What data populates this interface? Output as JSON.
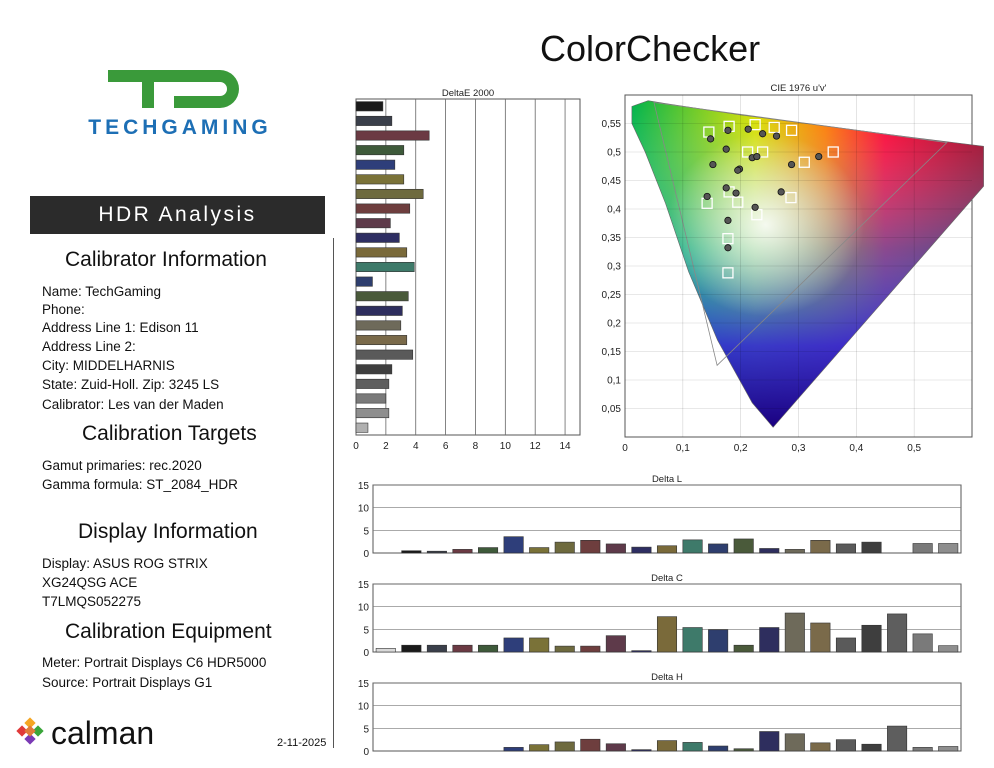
{
  "page_title": "ColorChecker",
  "brand_text": "TECHGAMING",
  "banner": "HDR Analysis",
  "calibrator": {
    "title": "Calibrator Information",
    "lines": [
      "Name: TechGaming",
      "Phone:",
      "Address Line 1: Edison 11",
      "Address Line 2:",
      "City: MIDDELHARNIS",
      "State: Zuid-Holl.   Zip: 3245 LS",
      "Calibrator: Les van der Maden"
    ]
  },
  "targets": {
    "title": "Calibration Targets",
    "lines": [
      "Gamut primaries: rec.2020",
      "Gamma formula: ST_2084_HDR"
    ]
  },
  "display": {
    "title": "Display Information",
    "lines": [
      "Display: ASUS ROG STRIX",
      "XG24QSG ACE",
      "T7LMQS052275"
    ]
  },
  "equipment": {
    "title": "Calibration Equipment",
    "lines": [
      "Meter: Portrait Displays C6 HDR5000",
      "Source: Portrait Displays G1"
    ]
  },
  "calman_logo_text": "calman",
  "date": "2-11-2025",
  "colors": {
    "patches": [
      "#d9d9d9",
      "#1a1a1a",
      "#3a3f4a",
      "#6b3a43",
      "#3e5a3a",
      "#2e3e7a",
      "#7a7238",
      "#6e6a3e",
      "#6e3e3e",
      "#5e3a4a",
      "#2e2e62",
      "#7a6a3a",
      "#3e7a6a",
      "#2e3e6e",
      "#4a5a3a",
      "#2e2e5e",
      "#6e6a5a",
      "#7a6a4a",
      "#5a5a5a",
      "#3e3e3e",
      "#5e5e5e",
      "#7a7a7a",
      "#8e8e8e",
      "#b0b0b0"
    ],
    "diagram_outline": "#888888",
    "measured_marker": "#555555"
  },
  "chart_data": [
    {
      "type": "bar",
      "title": "DeltaE 2000",
      "orientation": "horizontal",
      "xlim": [
        0,
        15
      ],
      "xticks": [
        0,
        2,
        4,
        6,
        8,
        10,
        12,
        14
      ],
      "values": [
        1.8,
        2.4,
        4.9,
        3.2,
        2.6,
        3.2,
        4.5,
        3.6,
        2.3,
        2.9,
        3.4,
        3.9,
        1.1,
        3.5,
        3.1,
        3.0,
        3.4,
        3.8,
        2.4,
        2.2,
        2.0,
        2.2,
        0.8
      ],
      "grid": true
    },
    {
      "type": "scatter",
      "title": "CIE 1976 u'v'",
      "xlim": [
        0,
        0.6
      ],
      "ylim": [
        0,
        0.6
      ],
      "xticks": [
        "0",
        "0,1",
        "0,2",
        "0,3",
        "0,4",
        "0,5"
      ],
      "yticks": [
        "0,05",
        "0,1",
        "0,15",
        "0,2",
        "0,25",
        "0,3",
        "0,35",
        "0,4",
        "0,45",
        "0,5",
        "0,55"
      ],
      "gamut_primaries": [
        [
          0.0501,
          0.5868
        ],
        [
          0.5566,
          0.5165
        ],
        [
          0.1593,
          0.1258
        ]
      ],
      "series": [
        {
          "marker": "square",
          "points": [
            [
              0.145,
              0.535
            ],
            [
              0.18,
              0.545
            ],
            [
              0.225,
              0.548
            ],
            [
              0.258,
              0.543
            ],
            [
              0.288,
              0.538
            ],
            [
              0.212,
              0.5
            ],
            [
              0.238,
              0.5
            ],
            [
              0.36,
              0.5
            ],
            [
              0.31,
              0.482
            ],
            [
              0.18,
              0.43
            ],
            [
              0.142,
              0.41
            ],
            [
              0.195,
              0.412
            ],
            [
              0.228,
              0.39
            ],
            [
              0.287,
              0.42
            ],
            [
              0.178,
              0.348
            ],
            [
              0.178,
              0.288
            ]
          ]
        },
        {
          "marker": "circle",
          "points": [
            [
              0.178,
              0.538
            ],
            [
              0.213,
              0.54
            ],
            [
              0.238,
              0.532
            ],
            [
              0.262,
              0.528
            ],
            [
              0.148,
              0.523
            ],
            [
              0.175,
              0.505
            ],
            [
              0.22,
              0.49
            ],
            [
              0.228,
              0.492
            ],
            [
              0.335,
              0.492
            ],
            [
              0.198,
              0.47
            ],
            [
              0.195,
              0.468
            ],
            [
              0.288,
              0.478
            ],
            [
              0.152,
              0.478
            ],
            [
              0.175,
              0.437
            ],
            [
              0.192,
              0.428
            ],
            [
              0.142,
              0.422
            ],
            [
              0.27,
              0.43
            ],
            [
              0.225,
              0.403
            ],
            [
              0.178,
              0.38
            ],
            [
              0.178,
              0.332
            ]
          ]
        }
      ],
      "grid": true
    },
    {
      "type": "bar",
      "title": "Delta L",
      "ylim": [
        0,
        15
      ],
      "yticks": [
        0,
        5,
        10,
        15
      ],
      "values": [
        0,
        0.5,
        0.4,
        0.8,
        1.2,
        3.6,
        1.2,
        2.4,
        2.8,
        2.0,
        1.3,
        1.6,
        2.9,
        2.0,
        3.1,
        1.0,
        0.8,
        2.8,
        2.0,
        2.4,
        0,
        2.1,
        2.1
      ],
      "grid": true
    },
    {
      "type": "bar",
      "title": "Delta C",
      "ylim": [
        0,
        15
      ],
      "yticks": [
        0,
        5,
        10,
        15
      ],
      "values": [
        0.8,
        1.5,
        1.5,
        1.5,
        1.5,
        3.1,
        3.1,
        1.3,
        1.3,
        3.6,
        0.3,
        7.8,
        5.4,
        4.9,
        1.5,
        5.4,
        8.6,
        6.4,
        3.1,
        5.9,
        8.4,
        4.0,
        1.4
      ],
      "grid": true
    },
    {
      "type": "bar",
      "title": "Delta H",
      "ylim": [
        0,
        15
      ],
      "yticks": [
        0,
        5,
        10,
        15
      ],
      "values": [
        0,
        0,
        0,
        0,
        0,
        0.8,
        1.4,
        2.0,
        2.6,
        1.6,
        0.3,
        2.3,
        1.9,
        1.1,
        0.5,
        4.3,
        3.8,
        1.8,
        2.5,
        1.5,
        5.5,
        0.8,
        1.0
      ],
      "grid": true
    }
  ]
}
